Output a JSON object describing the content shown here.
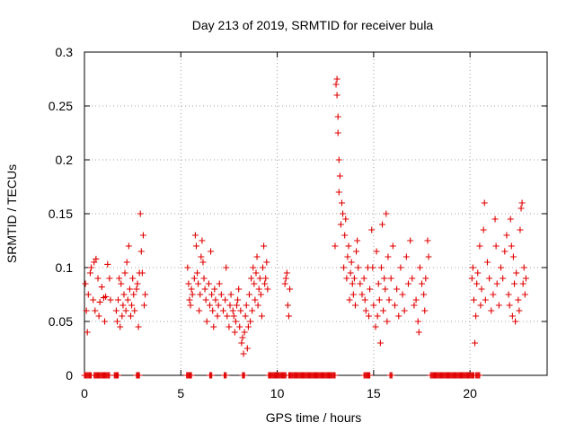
{
  "chart_data": {
    "type": "scatter",
    "title": "Day 213 of 2019, SRMTID for receiver bula",
    "xlabel": "GPS time / hours",
    "ylabel": "SRMTID / TECUs",
    "xlim": [
      0,
      24
    ],
    "ylim": [
      0,
      0.3
    ],
    "xticks": [
      0,
      5,
      10,
      15,
      20
    ],
    "yticks": [
      0,
      0.05,
      0.1,
      0.15,
      0.2,
      0.25,
      0.3
    ],
    "xtick_labels": [
      "0",
      "5",
      "10",
      "15",
      "20"
    ],
    "ytick_labels": [
      "0",
      "0.05",
      "0.1",
      "0.15",
      "0.2",
      "0.25",
      "0.3"
    ],
    "grid": true,
    "marker": "plus",
    "color": "#e00000",
    "series": [
      {
        "name": "SRMTID",
        "points": [
          [
            0.05,
            0.085
          ],
          [
            0.1,
            0.06
          ],
          [
            0.15,
            0.04
          ],
          [
            0.2,
            0.075
          ],
          [
            0.3,
            0.095
          ],
          [
            0.35,
            0.1
          ],
          [
            0.45,
            0.07
          ],
          [
            0.5,
            0.105
          ],
          [
            0.55,
            0.06
          ],
          [
            0.6,
            0.108
          ],
          [
            0.7,
            0.09
          ],
          [
            0.75,
            0.055
          ],
          [
            0.8,
            0.068
          ],
          [
            0.9,
            0.082
          ],
          [
            1.0,
            0.072
          ],
          [
            1.05,
            0.05
          ],
          [
            1.1,
            0.073
          ],
          [
            1.2,
            0.103
          ],
          [
            1.3,
            0.09
          ],
          [
            1.35,
            0.07
          ],
          [
            1.65,
            0.06
          ],
          [
            1.7,
            0.05
          ],
          [
            1.75,
            0.07
          ],
          [
            1.8,
            0.09
          ],
          [
            1.85,
            0.045
          ],
          [
            1.9,
            0.085
          ],
          [
            1.95,
            0.055
          ],
          [
            2.0,
            0.065
          ],
          [
            2.05,
            0.075
          ],
          [
            2.1,
            0.095
          ],
          [
            2.15,
            0.06
          ],
          [
            2.2,
            0.105
          ],
          [
            2.25,
            0.07
          ],
          [
            2.3,
            0.12
          ],
          [
            2.35,
            0.08
          ],
          [
            2.4,
            0.055
          ],
          [
            2.45,
            0.065
          ],
          [
            2.5,
            0.09
          ],
          [
            2.55,
            0.075
          ],
          [
            2.6,
            0.06
          ],
          [
            2.7,
            0.08
          ],
          [
            2.75,
            0.085
          ],
          [
            2.8,
            0.045
          ],
          [
            2.85,
            0.095
          ],
          [
            2.9,
            0.15
          ],
          [
            2.95,
            0.115
          ],
          [
            3.0,
            0.095
          ],
          [
            3.05,
            0.13
          ],
          [
            3.1,
            0.065
          ],
          [
            3.15,
            0.075
          ],
          [
            5.35,
            0.1
          ],
          [
            5.4,
            0.085
          ],
          [
            5.45,
            0.07
          ],
          [
            5.5,
            0.065
          ],
          [
            5.55,
            0.08
          ],
          [
            5.6,
            0.075
          ],
          [
            5.7,
            0.09
          ],
          [
            5.75,
            0.13
          ],
          [
            5.8,
            0.12
          ],
          [
            5.85,
            0.095
          ],
          [
            5.9,
            0.085
          ],
          [
            5.95,
            0.06
          ],
          [
            6.0,
            0.075
          ],
          [
            6.05,
            0.11
          ],
          [
            6.1,
            0.125
          ],
          [
            6.15,
            0.105
          ],
          [
            6.2,
            0.09
          ],
          [
            6.25,
            0.08
          ],
          [
            6.3,
            0.07
          ],
          [
            6.35,
            0.05
          ],
          [
            6.45,
            0.085
          ],
          [
            6.5,
            0.065
          ],
          [
            6.55,
            0.115
          ],
          [
            6.6,
            0.075
          ],
          [
            6.65,
            0.06
          ],
          [
            6.7,
            0.045
          ],
          [
            6.75,
            0.08
          ],
          [
            6.8,
            0.07
          ],
          [
            6.9,
            0.055
          ],
          [
            6.95,
            0.065
          ],
          [
            7.0,
            0.085
          ],
          [
            7.1,
            0.075
          ],
          [
            7.2,
            0.06
          ],
          [
            7.3,
            0.07
          ],
          [
            7.35,
            0.1
          ],
          [
            7.4,
            0.055
          ],
          [
            7.5,
            0.045
          ],
          [
            7.55,
            0.065
          ],
          [
            7.6,
            0.075
          ],
          [
            7.7,
            0.06
          ],
          [
            7.75,
            0.055
          ],
          [
            7.8,
            0.04
          ],
          [
            7.85,
            0.05
          ],
          [
            7.9,
            0.065
          ],
          [
            7.95,
            0.07
          ],
          [
            8.0,
            0.08
          ],
          [
            8.05,
            0.045
          ],
          [
            8.1,
            0.06
          ],
          [
            8.15,
            0.03
          ],
          [
            8.2,
            0.035
          ],
          [
            8.25,
            0.02
          ],
          [
            8.3,
            0.04
          ],
          [
            8.35,
            0.055
          ],
          [
            8.4,
            0.065
          ],
          [
            8.45,
            0.025
          ],
          [
            8.5,
            0.045
          ],
          [
            8.55,
            0.075
          ],
          [
            8.6,
            0.05
          ],
          [
            8.65,
            0.09
          ],
          [
            8.7,
            0.06
          ],
          [
            8.75,
            0.1
          ],
          [
            8.8,
            0.085
          ],
          [
            8.85,
            0.07
          ],
          [
            8.9,
            0.095
          ],
          [
            8.95,
            0.11
          ],
          [
            9.0,
            0.065
          ],
          [
            9.05,
            0.08
          ],
          [
            9.1,
            0.09
          ],
          [
            9.15,
            0.075
          ],
          [
            9.2,
            0.055
          ],
          [
            9.25,
            0.1
          ],
          [
            9.3,
            0.12
          ],
          [
            9.35,
            0.085
          ],
          [
            9.4,
            0.09
          ],
          [
            9.45,
            0.105
          ],
          [
            9.5,
            0.08
          ],
          [
            10.4,
            0.085
          ],
          [
            10.45,
            0.09
          ],
          [
            10.5,
            0.095
          ],
          [
            10.55,
            0.065
          ],
          [
            10.6,
            0.055
          ],
          [
            10.65,
            0.08
          ],
          [
            13.0,
            0.12
          ],
          [
            13.05,
            0.27
          ],
          [
            13.1,
            0.275
          ],
          [
            13.1,
            0.26
          ],
          [
            13.15,
            0.24
          ],
          [
            13.15,
            0.225
          ],
          [
            13.2,
            0.2
          ],
          [
            13.2,
            0.17
          ],
          [
            13.25,
            0.185
          ],
          [
            13.3,
            0.14
          ],
          [
            13.35,
            0.16
          ],
          [
            13.4,
            0.15
          ],
          [
            13.45,
            0.1
          ],
          [
            13.5,
            0.13
          ],
          [
            13.55,
            0.145
          ],
          [
            13.6,
            0.09
          ],
          [
            13.65,
            0.11
          ],
          [
            13.7,
            0.12
          ],
          [
            13.75,
            0.07
          ],
          [
            13.8,
            0.095
          ],
          [
            13.85,
            0.105
          ],
          [
            13.9,
            0.085
          ],
          [
            13.95,
            0.075
          ],
          [
            14.0,
            0.09
          ],
          [
            14.05,
            0.065
          ],
          [
            14.1,
            0.115
          ],
          [
            14.15,
            0.125
          ],
          [
            14.2,
            0.1
          ],
          [
            14.3,
            0.085
          ],
          [
            14.4,
            0.075
          ],
          [
            14.5,
            0.09
          ],
          [
            14.55,
            0.07
          ],
          [
            14.6,
            0.06
          ],
          [
            14.7,
            0.1
          ],
          [
            14.75,
            0.055
          ],
          [
            14.8,
            0.08
          ],
          [
            14.9,
            0.135
          ],
          [
            14.95,
            0.1
          ],
          [
            15.0,
            0.065
          ],
          [
            15.1,
            0.045
          ],
          [
            15.15,
            0.115
          ],
          [
            15.2,
            0.055
          ],
          [
            15.25,
            0.085
          ],
          [
            15.3,
            0.07
          ],
          [
            15.35,
            0.03
          ],
          [
            15.4,
            0.1
          ],
          [
            15.45,
            0.14
          ],
          [
            15.5,
            0.06
          ],
          [
            15.55,
            0.09
          ],
          [
            15.6,
            0.08
          ],
          [
            15.65,
            0.15
          ],
          [
            15.7,
            0.05
          ],
          [
            15.75,
            0.11
          ],
          [
            15.8,
            0.07
          ],
          [
            15.9,
            0.09
          ],
          [
            16.0,
            0.12
          ],
          [
            16.1,
            0.065
          ],
          [
            16.2,
            0.08
          ],
          [
            16.3,
            0.055
          ],
          [
            16.4,
            0.1
          ],
          [
            16.5,
            0.075
          ],
          [
            16.6,
            0.06
          ],
          [
            16.7,
            0.11
          ],
          [
            16.8,
            0.085
          ],
          [
            16.9,
            0.125
          ],
          [
            17.0,
            0.09
          ],
          [
            17.1,
            0.065
          ],
          [
            17.2,
            0.07
          ],
          [
            17.3,
            0.05
          ],
          [
            17.35,
            0.04
          ],
          [
            17.4,
            0.1
          ],
          [
            17.5,
            0.085
          ],
          [
            17.6,
            0.075
          ],
          [
            17.65,
            0.06
          ],
          [
            17.7,
            0.09
          ],
          [
            17.8,
            0.125
          ],
          [
            17.85,
            0.11
          ],
          [
            20.1,
            0.09
          ],
          [
            20.15,
            0.1
          ],
          [
            20.2,
            0.07
          ],
          [
            20.25,
            0.03
          ],
          [
            20.3,
            0.055
          ],
          [
            20.35,
            0.085
          ],
          [
            20.4,
            0.095
          ],
          [
            20.5,
            0.12
          ],
          [
            20.55,
            0.065
          ],
          [
            20.6,
            0.08
          ],
          [
            20.7,
            0.135
          ],
          [
            20.75,
            0.16
          ],
          [
            20.8,
            0.07
          ],
          [
            20.9,
            0.105
          ],
          [
            21.0,
            0.09
          ],
          [
            21.1,
            0.06
          ],
          [
            21.2,
            0.075
          ],
          [
            21.3,
            0.145
          ],
          [
            21.35,
            0.12
          ],
          [
            21.4,
            0.085
          ],
          [
            21.5,
            0.065
          ],
          [
            21.6,
            0.1
          ],
          [
            21.7,
            0.09
          ],
          [
            21.8,
            0.115
          ],
          [
            21.9,
            0.13
          ],
          [
            22.0,
            0.075
          ],
          [
            22.05,
            0.065
          ],
          [
            22.1,
            0.145
          ],
          [
            22.15,
            0.12
          ],
          [
            22.2,
            0.055
          ],
          [
            22.25,
            0.11
          ],
          [
            22.3,
            0.085
          ],
          [
            22.35,
            0.05
          ],
          [
            22.4,
            0.095
          ],
          [
            22.5,
            0.07
          ],
          [
            22.55,
            0.06
          ],
          [
            22.6,
            0.135
          ],
          [
            22.65,
            0.155
          ],
          [
            22.7,
            0.16
          ],
          [
            22.75,
            0.085
          ],
          [
            22.8,
            0.1
          ],
          [
            22.85,
            0.075
          ],
          [
            22.9,
            0.09
          ]
        ]
      }
    ],
    "zero_segments": [
      [
        0.0,
        0.35
      ],
      [
        0.5,
        1.3
      ],
      [
        1.55,
        1.75
      ],
      [
        2.7,
        2.85
      ],
      [
        5.3,
        5.55
      ],
      [
        6.5,
        6.6
      ],
      [
        7.25,
        7.35
      ],
      [
        8.2,
        8.3
      ],
      [
        9.55,
        10.45
      ],
      [
        10.6,
        13.0
      ],
      [
        14.5,
        14.8
      ],
      [
        15.85,
        15.95
      ],
      [
        17.95,
        20.2
      ],
      [
        20.3,
        20.5
      ]
    ]
  }
}
